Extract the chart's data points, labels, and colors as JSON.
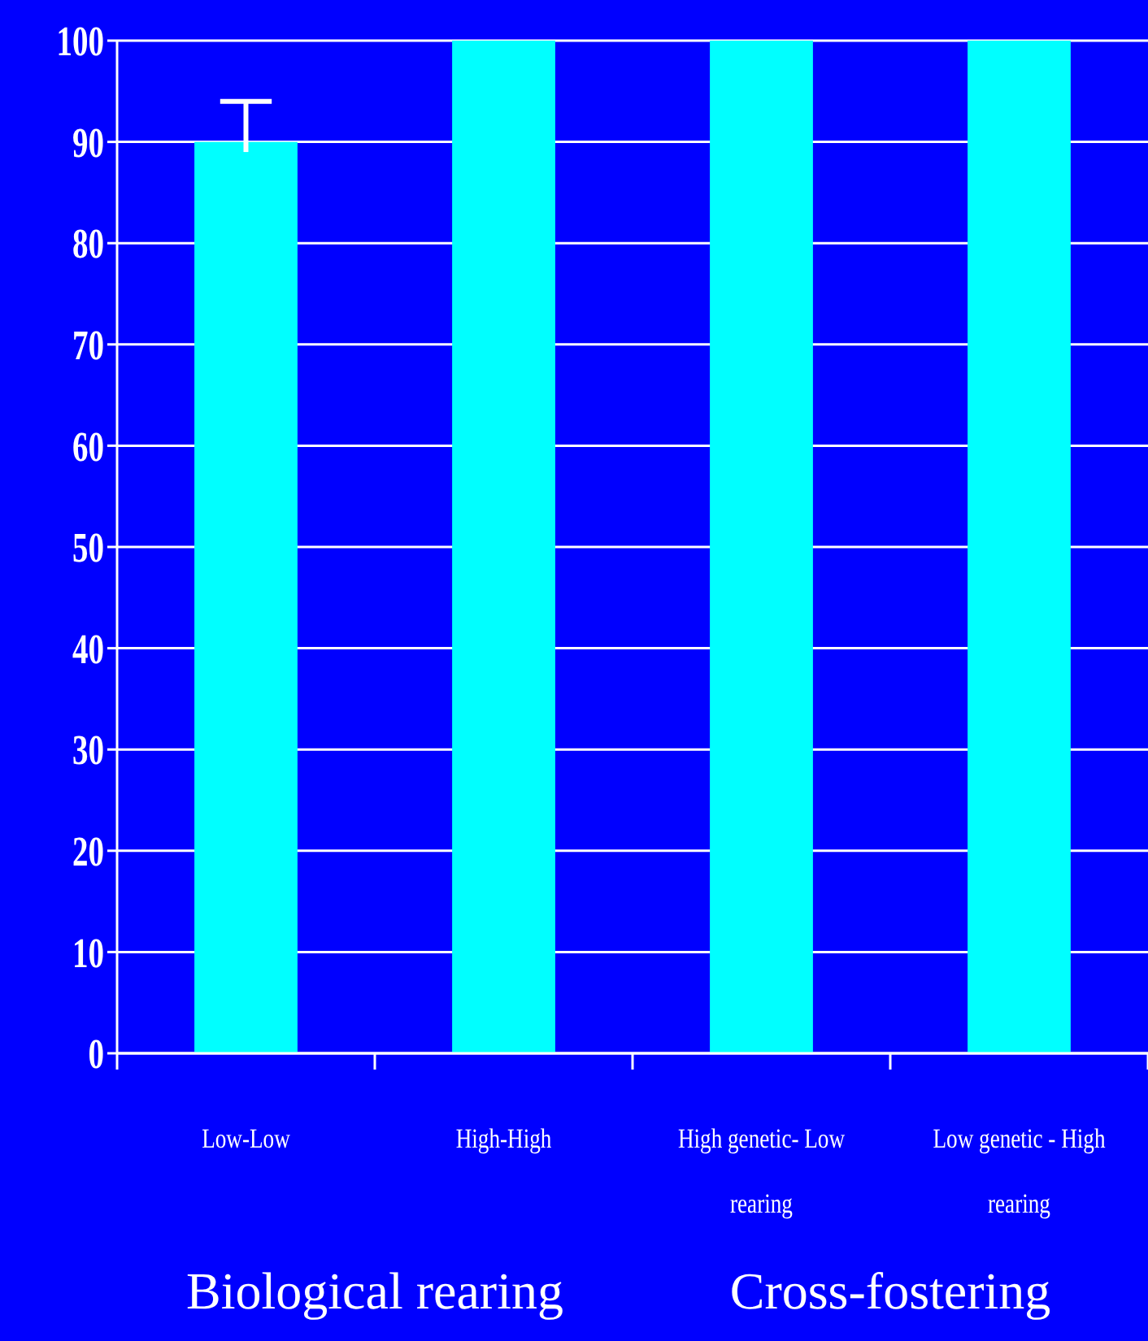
{
  "chart_data": {
    "type": "bar",
    "categories": [
      "Low-Low",
      "High-High",
      "High genetic- Low rearing",
      "Low genetic - High rearing"
    ],
    "values": [
      90,
      100,
      100,
      100
    ],
    "color": "#00ffff",
    "errors": [
      [
        89,
        94
      ],
      null,
      null,
      null
    ],
    "ylim": [
      0,
      100
    ],
    "yticks": [
      0,
      10,
      20,
      30,
      40,
      50,
      60,
      70,
      80,
      90,
      100
    ],
    "grid": "y",
    "annotations": [
      "Biological rearing",
      "Cross-fostering"
    ]
  }
}
